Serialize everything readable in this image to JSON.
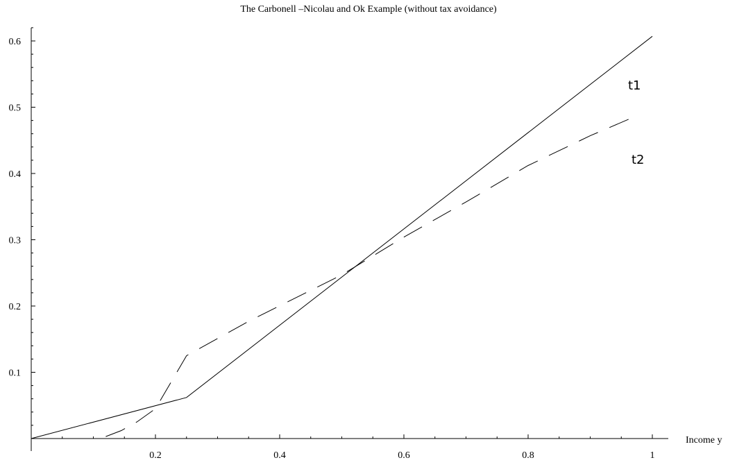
{
  "chart_data": {
    "type": "line",
    "title": "The Carbonell –Nicolau and Ok Example (without tax avoidance)",
    "xlabel": "Income y",
    "ylabel": "",
    "xlim": [
      0,
      1.0
    ],
    "ylim": [
      0,
      0.62
    ],
    "x_ticks": [
      0.2,
      0.4,
      0.6,
      0.8,
      1.0
    ],
    "x_tick_labels": [
      "0.2",
      "0.4",
      "0.6",
      "0.8",
      "1"
    ],
    "y_ticks": [
      0.1,
      0.2,
      0.3,
      0.4,
      0.5,
      0.6
    ],
    "y_tick_labels": [
      "0.1",
      "0.2",
      "0.3",
      "0.4",
      "0.5",
      "0.6"
    ],
    "grid": false,
    "series": [
      {
        "name": "t1",
        "style": "solid",
        "points": [
          [
            0,
            0
          ],
          [
            0.25,
            0.062
          ],
          [
            1.0,
            0.607
          ]
        ]
      },
      {
        "name": "t2",
        "style": "dashed",
        "points": [
          [
            0.12,
            0.003
          ],
          [
            0.145,
            0.012
          ],
          [
            0.17,
            0.025
          ],
          [
            0.2,
            0.045
          ],
          [
            0.25,
            0.125
          ],
          [
            0.35,
            0.177
          ],
          [
            0.5,
            0.247
          ],
          [
            0.6,
            0.304
          ],
          [
            0.7,
            0.357
          ],
          [
            0.8,
            0.412
          ],
          [
            0.9,
            0.457
          ],
          [
            0.97,
            0.485
          ]
        ]
      }
    ]
  }
}
